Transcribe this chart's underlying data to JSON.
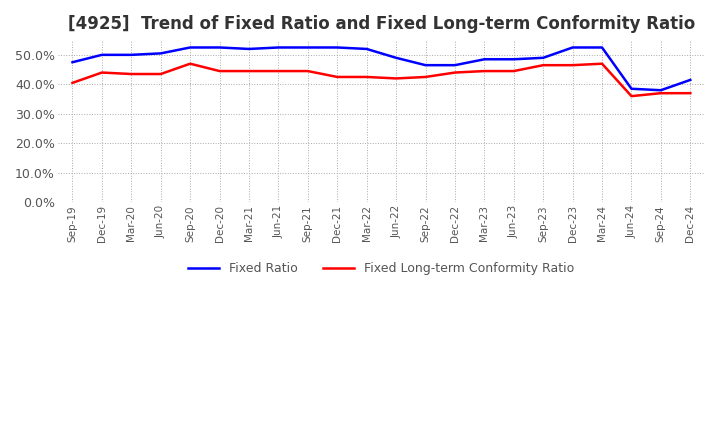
{
  "title": "[4925]  Trend of Fixed Ratio and Fixed Long-term Conformity Ratio",
  "title_fontsize": 12,
  "legend_labels": [
    "Fixed Ratio",
    "Fixed Long-term Conformity Ratio"
  ],
  "legend_colors": [
    "#0000FF",
    "#FF0000"
  ],
  "x_labels": [
    "Sep-19",
    "Dec-19",
    "Mar-20",
    "Jun-20",
    "Sep-20",
    "Dec-20",
    "Mar-21",
    "Jun-21",
    "Sep-21",
    "Dec-21",
    "Mar-22",
    "Jun-22",
    "Sep-22",
    "Dec-22",
    "Mar-23",
    "Jun-23",
    "Sep-23",
    "Dec-23",
    "Mar-24",
    "Jun-24",
    "Sep-24",
    "Dec-24"
  ],
  "fixed_ratio": [
    47.5,
    50.0,
    50.0,
    50.5,
    52.5,
    52.5,
    52.0,
    52.5,
    52.5,
    52.5,
    52.0,
    49.0,
    46.5,
    46.5,
    48.5,
    48.5,
    49.0,
    52.5,
    52.5,
    38.5,
    38.0,
    41.5
  ],
  "fixed_lt_ratio": [
    40.5,
    44.0,
    43.5,
    43.5,
    47.0,
    44.5,
    44.5,
    44.5,
    44.5,
    42.5,
    42.5,
    42.0,
    42.5,
    44.0,
    44.5,
    44.5,
    46.5,
    46.5,
    47.0,
    36.0,
    37.0,
    37.0
  ],
  "ylim": [
    0,
    55
  ],
  "yticks": [
    0,
    10,
    20,
    30,
    40,
    50
  ],
  "background_color": "#FFFFFF",
  "plot_bg_color": "#FFFFFF",
  "grid_color": "#AAAAAA",
  "line_width": 1.8,
  "title_color": "#333333"
}
